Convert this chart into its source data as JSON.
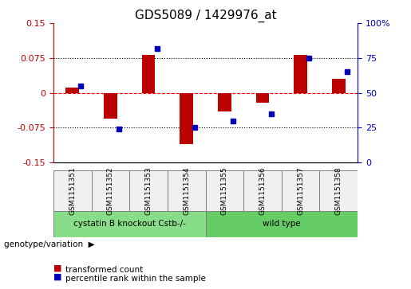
{
  "title": "GDS5089 / 1429976_at",
  "samples": [
    "GSM1151351",
    "GSM1151352",
    "GSM1151353",
    "GSM1151354",
    "GSM1151355",
    "GSM1151356",
    "GSM1151357",
    "GSM1151358"
  ],
  "red_values": [
    0.012,
    -0.055,
    0.082,
    -0.11,
    -0.04,
    -0.022,
    0.082,
    0.03
  ],
  "blue_values": [
    55,
    24,
    82,
    25,
    30,
    35,
    75,
    65
  ],
  "ylim_left": [
    -0.15,
    0.15
  ],
  "ylim_right": [
    0,
    100
  ],
  "yticks_left": [
    -0.15,
    -0.075,
    0,
    0.075,
    0.15
  ],
  "yticks_right": [
    0,
    25,
    50,
    75,
    100
  ],
  "ytick_labels_left": [
    "-0.15",
    "-0.075",
    "0",
    "0.075",
    "0.15"
  ],
  "ytick_labels_right": [
    "0",
    "25",
    "50",
    "75",
    "100%"
  ],
  "hlines": [
    0.075,
    0,
    -0.075
  ],
  "hline_colors": [
    "black",
    "red",
    "black"
  ],
  "hline_styles": [
    "dotted",
    "dashed",
    "dotted"
  ],
  "red_color": "#BB0000",
  "blue_color": "#0000BB",
  "bar_width": 0.35,
  "group1_label": "cystatin B knockout Cstb-/-",
  "group2_label": "wild type",
  "group1_samples": [
    0,
    1,
    2,
    3
  ],
  "group2_samples": [
    4,
    5,
    6,
    7
  ],
  "group_label_prefix": "genotype/variation",
  "legend_red": "transformed count",
  "legend_blue": "percentile rank within the sample",
  "bg_color": "#f0f0f0",
  "group1_color": "#88dd88",
  "group2_color": "#66cc66"
}
